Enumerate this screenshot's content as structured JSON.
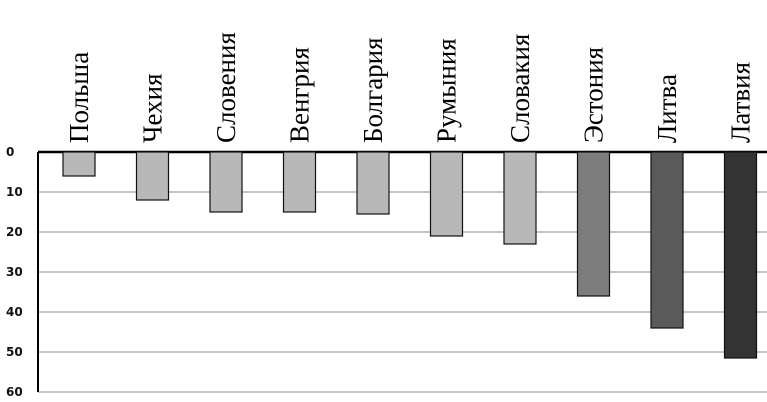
{
  "chart_data": {
    "type": "bar",
    "orientation": "vertical-inverted",
    "categories": [
      "Польша",
      "Чехия",
      "Словения",
      "Венгрия",
      "Болгария",
      "Румыния",
      "Словакия",
      "Эстония",
      "Литва",
      "Латвия"
    ],
    "values": [
      6,
      12,
      15,
      15,
      15.5,
      21,
      23,
      36,
      44,
      51.5
    ],
    "bar_colors": [
      "#b8b8b8",
      "#b8b8b8",
      "#b8b8b8",
      "#b8b8b8",
      "#b8b8b8",
      "#b8b8b8",
      "#b8b8b8",
      "#7c7c7c",
      "#5a5a5a",
      "#333333"
    ],
    "yticks": [
      0,
      10,
      20,
      30,
      40,
      50,
      60
    ],
    "ylim": [
      0,
      60
    ],
    "y_inverted": true,
    "grid": true,
    "title": "",
    "xlabel": "",
    "ylabel": ""
  }
}
